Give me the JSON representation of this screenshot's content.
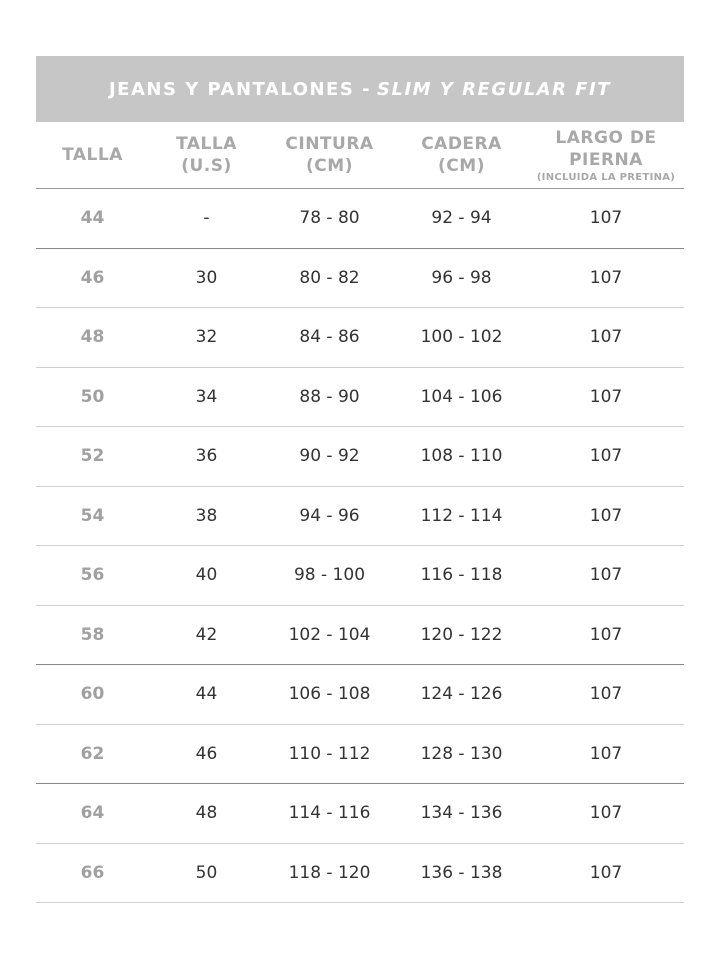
{
  "title": {
    "main": "JEANS Y PANTALONES -",
    "italic": "SLIM Y REGULAR FIT"
  },
  "headers": [
    {
      "line1": "TALLA",
      "line2": "",
      "note": ""
    },
    {
      "line1": "TALLA",
      "line2": "(U.S)",
      "note": ""
    },
    {
      "line1": "CINTURA",
      "line2": "(CM)",
      "note": ""
    },
    {
      "line1": "CADERA",
      "line2": "(CM)",
      "note": ""
    },
    {
      "line1": "LARGO DE",
      "line2": "PIERNA",
      "note": "(INCLUIDA LA PRETINA)"
    }
  ],
  "rows": [
    [
      "44",
      "-",
      "78 - 80",
      "92 - 94",
      "107"
    ],
    [
      "46",
      "30",
      "80 - 82",
      "96 - 98",
      "107"
    ],
    [
      "48",
      "32",
      "84 - 86",
      "100 - 102",
      "107"
    ],
    [
      "50",
      "34",
      "88 - 90",
      "104 - 106",
      "107"
    ],
    [
      "52",
      "36",
      "90 - 92",
      "108 - 110",
      "107"
    ],
    [
      "54",
      "38",
      "94 - 96",
      "112 - 114",
      "107"
    ],
    [
      "56",
      "40",
      "98 - 100",
      "116 - 118",
      "107"
    ],
    [
      "58",
      "42",
      "102 - 104",
      "120 - 122",
      "107"
    ],
    [
      "60",
      "44",
      "106 - 108",
      "124 - 126",
      "107"
    ],
    [
      "62",
      "46",
      "110 - 112",
      "128 - 130",
      "107"
    ],
    [
      "64",
      "48",
      "114 - 116",
      "134 - 136",
      "107"
    ],
    [
      "66",
      "50",
      "118 - 120",
      "136 - 138",
      "107"
    ]
  ],
  "colors": {
    "header_band": "#c6c6c6",
    "header_text": "#a8a8a8"
  }
}
